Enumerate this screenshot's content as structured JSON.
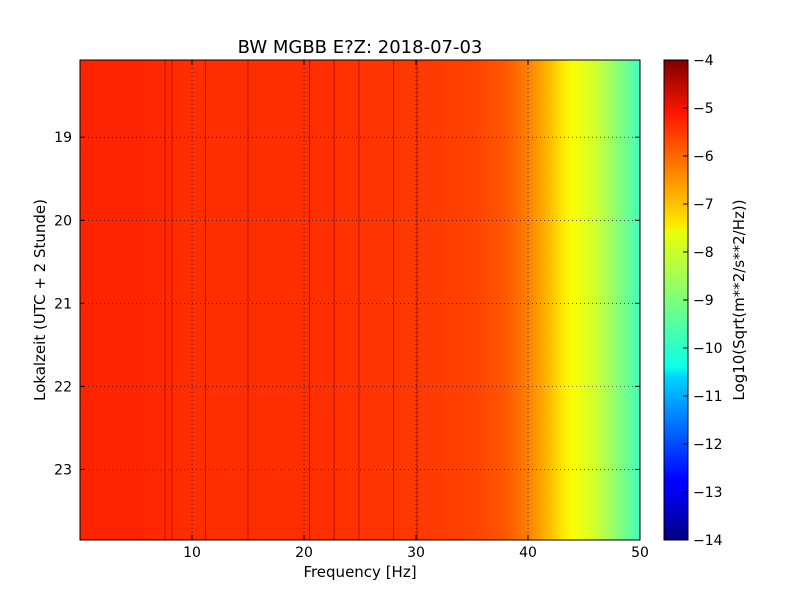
{
  "chart_data": {
    "type": "heatmap",
    "title": "BW MGBB E?Z: 2018-07-03",
    "xlabel": "Frequency [Hz]",
    "ylabel": "Lokalzeit (UTC + 2 Stunde)",
    "xlim": [
      0,
      50
    ],
    "ylim": [
      23.85,
      18.07
    ],
    "y_inverted": true,
    "x_ticks": [
      10,
      20,
      30,
      40,
      50
    ],
    "x_tick_labels": [
      "10",
      "20",
      "30",
      "40",
      "50"
    ],
    "y_ticks": [
      19,
      20,
      21,
      22,
      23
    ],
    "y_tick_labels": [
      "19",
      "20",
      "21",
      "22",
      "23"
    ],
    "grid": true,
    "grid_style": "dotted",
    "colormap": "jet",
    "colorbar": {
      "label": "Log10(Sqrt(m**2/s**2/Hz))",
      "min": -14,
      "max": -4,
      "ticks": [
        -4,
        -5,
        -6,
        -7,
        -8,
        -9,
        -10,
        -11,
        -12,
        -13,
        -14
      ],
      "tick_labels": [
        "−4",
        "−5",
        "−6",
        "−7",
        "−8",
        "−9",
        "−10",
        "−11",
        "−12",
        "−13",
        "−14"
      ]
    },
    "spectrum_profile": {
      "frequency_hz": [
        0,
        5,
        10,
        20,
        30,
        35,
        38,
        40,
        42,
        43,
        44,
        46,
        48,
        50
      ],
      "log10_value": [
        -5.6,
        -5.6,
        -5.7,
        -5.7,
        -5.8,
        -5.9,
        -6.1,
        -6.5,
        -7.1,
        -7.5,
        -7.8,
        -8.2,
        -8.9,
        -9.6
      ]
    },
    "line_features_hz": [
      7.6,
      8.2,
      11.2,
      15.0,
      20.5,
      22.7,
      24.9,
      28.0,
      30.1
    ]
  }
}
